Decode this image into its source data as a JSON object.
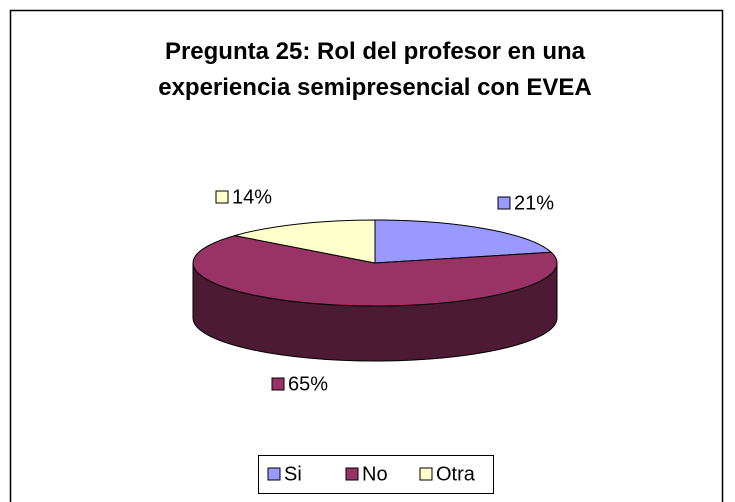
{
  "chart_data": {
    "type": "pie3d",
    "title": "Pregunta 25: Rol del profesor en una experiencia semipresencial con EVEA",
    "categories": [
      "Si",
      "No",
      "Otra"
    ],
    "values": [
      21,
      65,
      14
    ],
    "value_labels": [
      "21%",
      "65%",
      "14%"
    ],
    "colors": [
      "#9999FF",
      "#993366",
      "#FFFFCC"
    ],
    "legend": "bottom"
  }
}
